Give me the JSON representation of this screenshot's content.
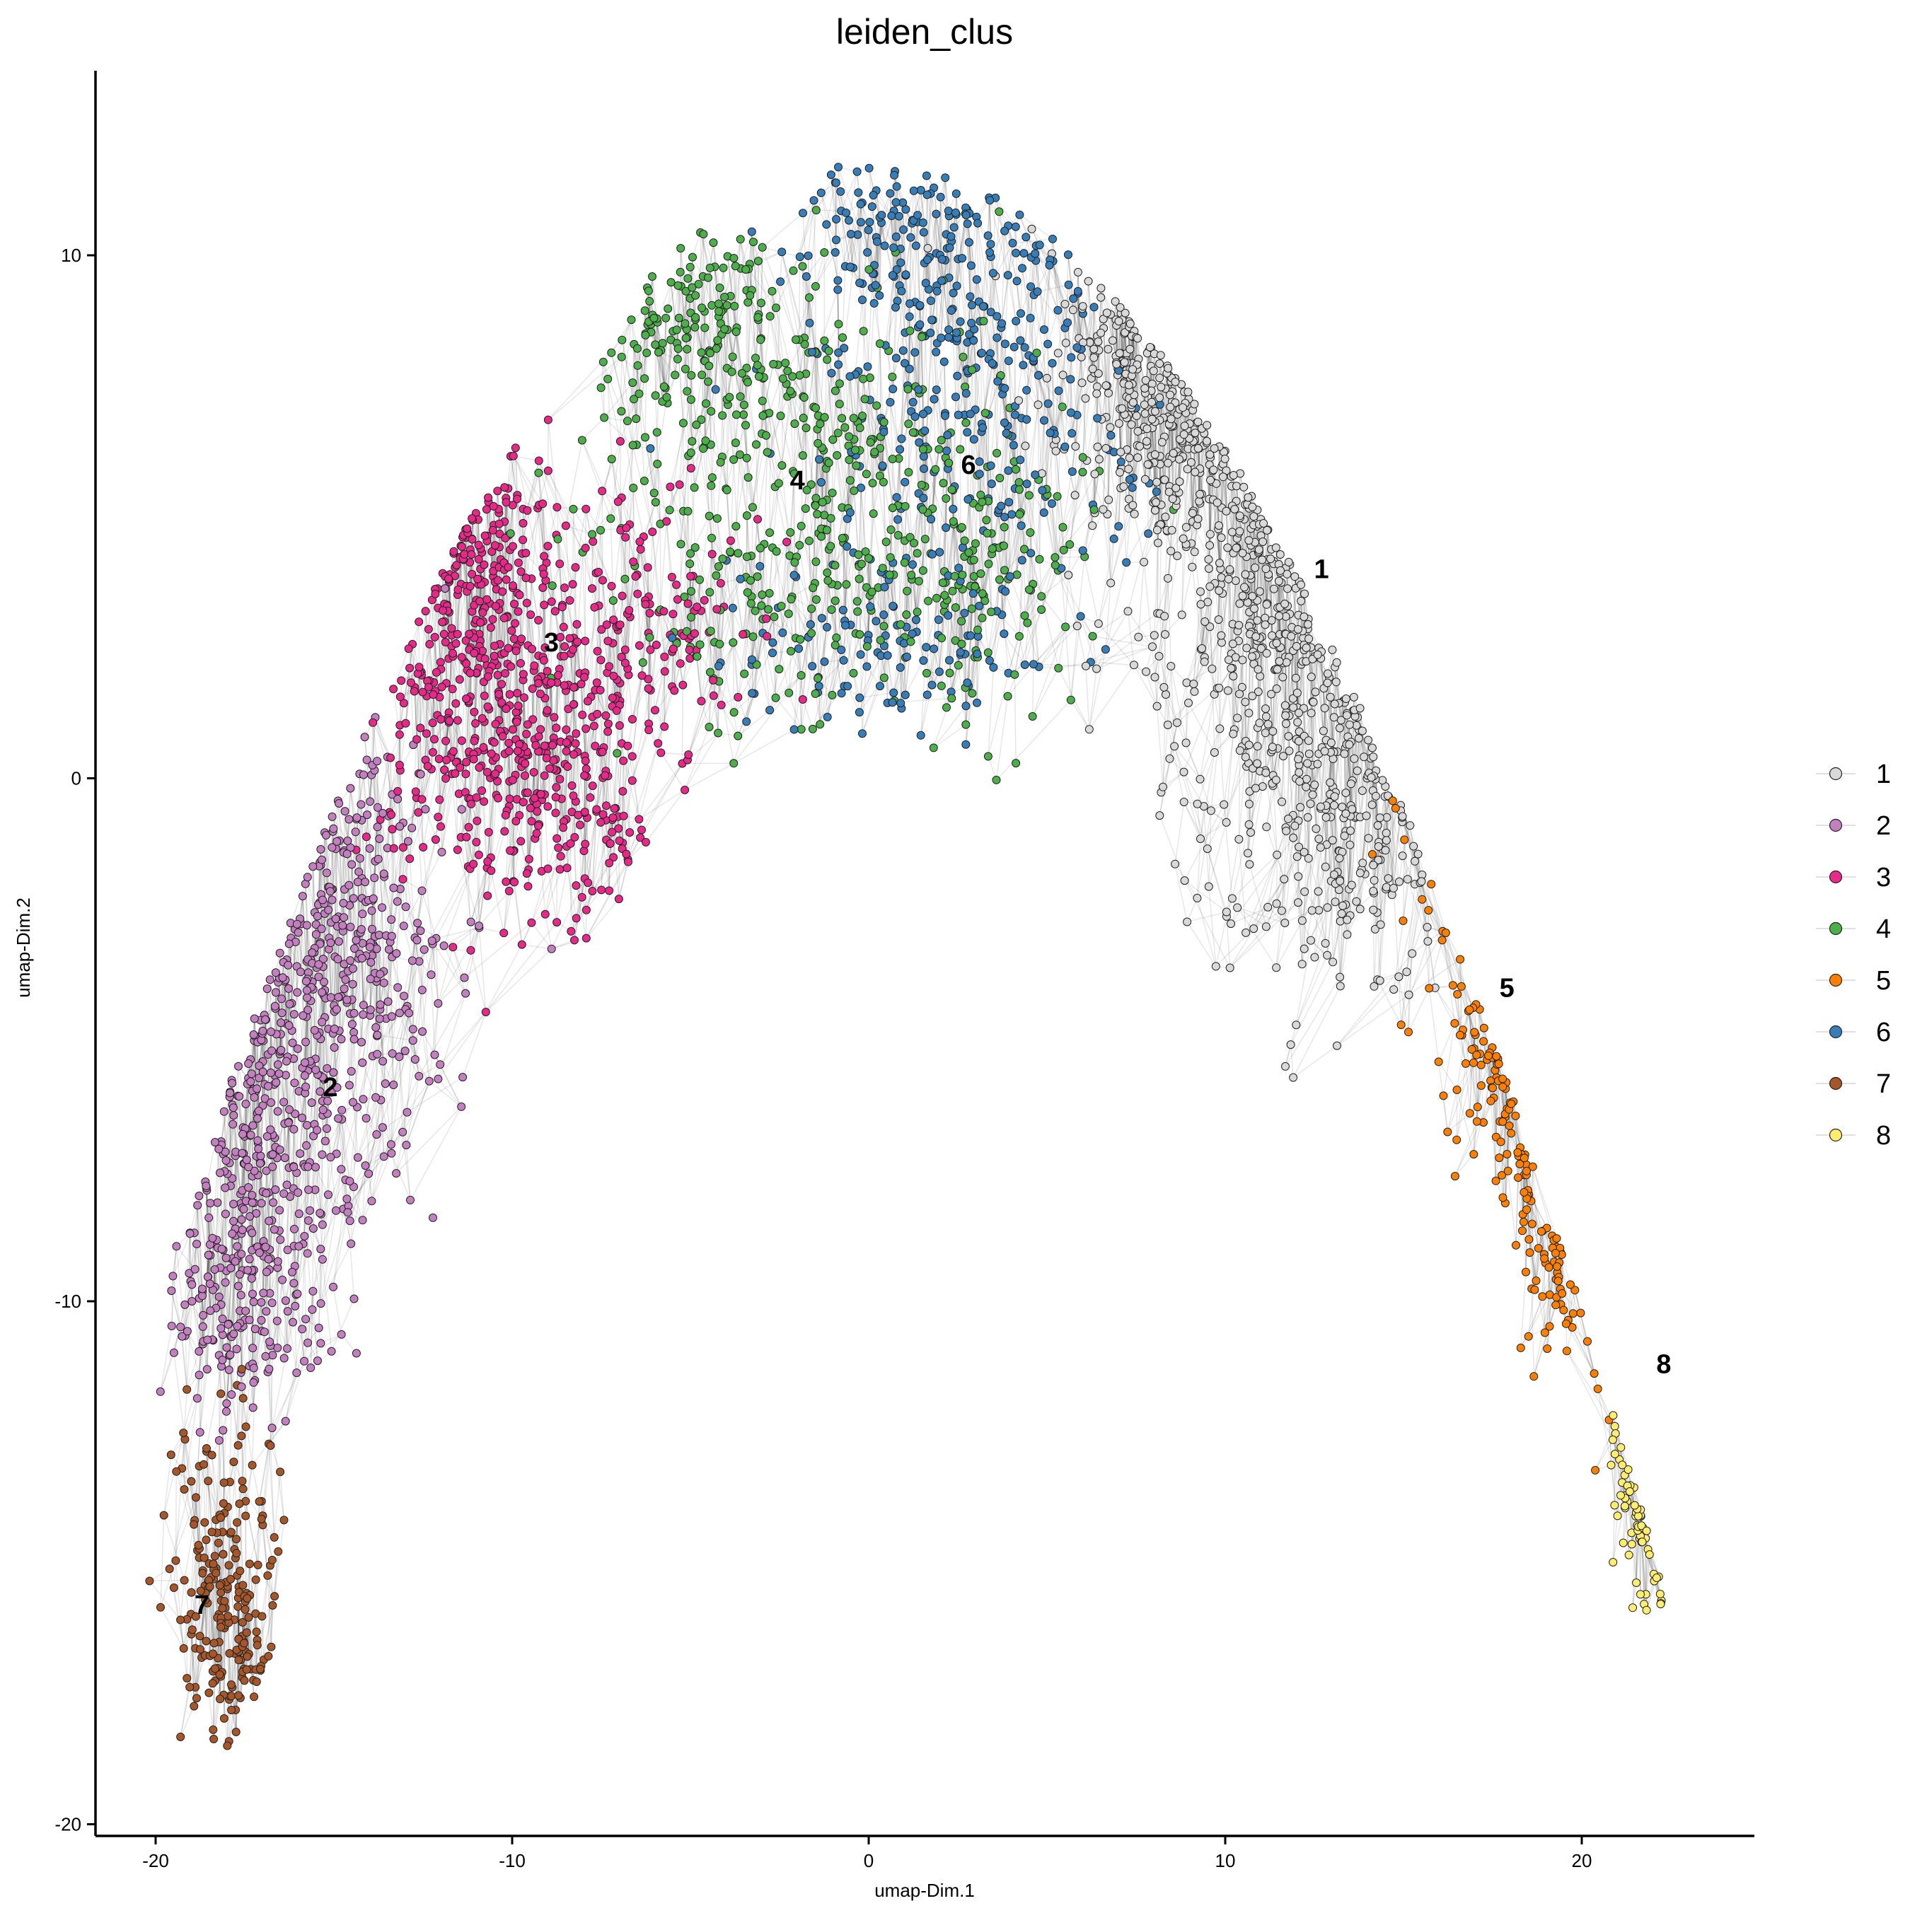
{
  "chart_data": {
    "type": "scatter",
    "title": "leiden_clus",
    "xlabel": "umap-Dim.1",
    "ylabel": "umap-Dim.2",
    "xlim": [
      -22,
      25
    ],
    "ylim": [
      -20.5,
      13.5
    ],
    "xticks": [
      -20,
      -10,
      0,
      10,
      20
    ],
    "yticks": [
      -20,
      -10,
      0,
      10
    ],
    "grid": false,
    "network_edges": true,
    "legend_position": "right",
    "series": [
      {
        "name": "1",
        "color": "#d9d9d9",
        "label_position": [
          12.7,
          4.0
        ]
      },
      {
        "name": "2",
        "color": "#c47fc0",
        "label_position": [
          -15.1,
          -5.9
        ]
      },
      {
        "name": "3",
        "color": "#e7298a",
        "label_position": [
          -8.9,
          2.6
        ]
      },
      {
        "name": "4",
        "color": "#4daf4a",
        "label_position": [
          -2.0,
          5.7
        ]
      },
      {
        "name": "5",
        "color": "#ff7f00",
        "label_position": [
          17.9,
          -4.0
        ]
      },
      {
        "name": "6",
        "color": "#377eb8",
        "label_position": [
          2.8,
          6.0
        ]
      },
      {
        "name": "7",
        "color": "#a65628",
        "label_position": [
          -18.7,
          -15.8
        ]
      },
      {
        "name": "8",
        "color": "#ffed6f",
        "label_position": [
          22.3,
          -11.2
        ]
      }
    ]
  }
}
